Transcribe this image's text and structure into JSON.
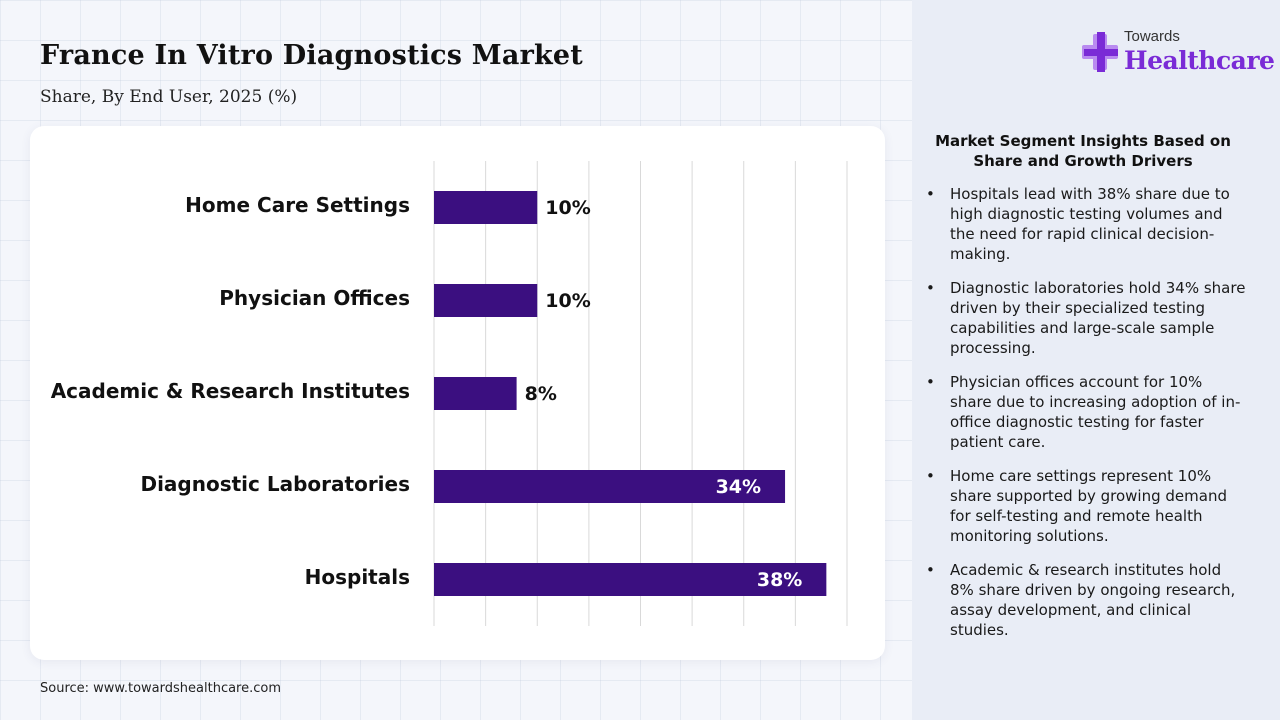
{
  "header": {
    "title": "France In Vitro Diagnostics Market",
    "subtitle": "Share, By End User, 2025 (%)"
  },
  "logo": {
    "top": "Towards",
    "main": "Healthcare"
  },
  "chart_data": {
    "type": "bar",
    "orientation": "horizontal",
    "categories": [
      "Home Care Settings",
      "Physician Offices",
      "Academic & Research Institutes",
      "Diagnostic Laboratories",
      "Hospitals"
    ],
    "values": [
      10,
      10,
      8,
      34,
      38
    ],
    "labels": [
      "10%",
      "10%",
      "8%",
      "34%",
      "38%"
    ],
    "xlim": [
      0,
      40
    ],
    "grid": true,
    "bar_color": "#3b0f80"
  },
  "insights": {
    "title": "Market Segment Insights Based on Share and Growth Drivers",
    "items": [
      "Hospitals lead with 38% share due to high diagnostic testing volumes and the need for rapid clinical decision-making.",
      "Diagnostic laboratories hold 34% share driven by their specialized testing capabilities and large-scale sample processing.",
      "Physician offices account for 10% share due to increasing adoption of in-office diagnostic testing for faster patient care.",
      "Home care settings represent 10% share supported by growing demand for self-testing and remote health monitoring solutions.",
      "Academic & research institutes hold 8% share driven by ongoing research, assay development, and clinical studies."
    ]
  },
  "footer": {
    "source": "Source: www.towardshealthcare.com"
  },
  "colors": {
    "brand": "#7a2bd6",
    "bar": "#3b0f80",
    "logo_cross_light": "#b98bf0"
  }
}
